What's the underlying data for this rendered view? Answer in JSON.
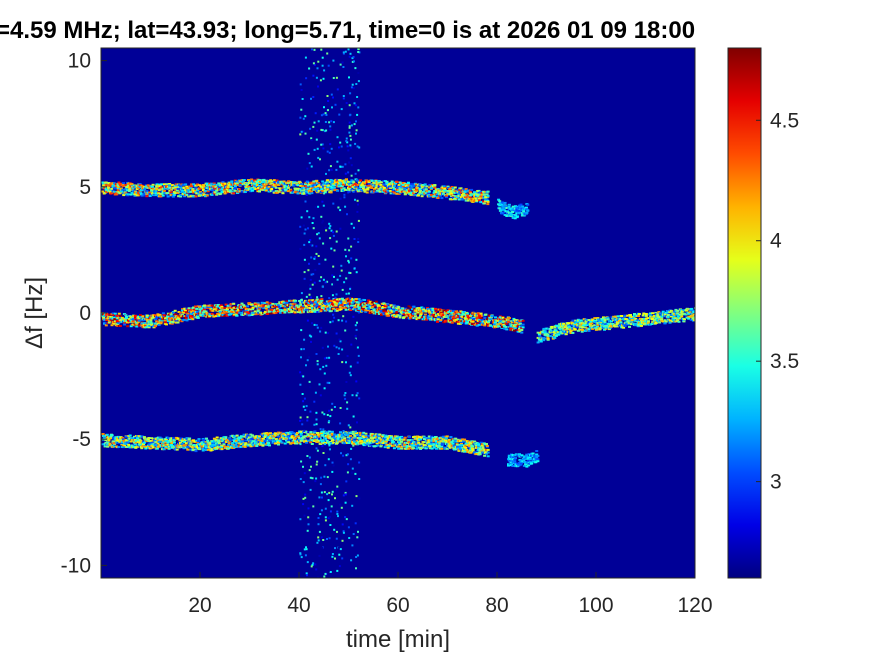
{
  "chart_data": {
    "type": "heatmap",
    "title": "=4.59 MHz;  lat=43.93; long=5.71, time=0 is at 2026 01 09 18:00",
    "xlabel": "time [min]",
    "ylabel": "Δf [Hz]",
    "xlim": [
      0,
      120
    ],
    "ylim": [
      -10.5,
      10.5
    ],
    "xticks": [
      20,
      40,
      60,
      80,
      100,
      120
    ],
    "yticks": [
      -10,
      -5,
      0,
      5,
      10
    ],
    "xtick_labels": [
      "20",
      "40",
      "60",
      "80",
      "100",
      "120"
    ],
    "ytick_labels": [
      "-10",
      "-5",
      "0",
      "5",
      "10"
    ],
    "colorbar": {
      "range": [
        2.6,
        4.8
      ],
      "ticks": [
        3,
        3.5,
        4,
        4.5
      ],
      "tick_labels": [
        "3",
        "3.5",
        "4",
        "4.5"
      ],
      "colormap": "jet"
    },
    "background_level": 2.65,
    "features": [
      {
        "name": "upper sideband trace",
        "x": [
          0,
          10,
          20,
          30,
          40,
          50,
          60,
          70,
          78
        ],
        "y": [
          5.0,
          4.9,
          4.9,
          5.1,
          5.0,
          5.1,
          5.0,
          4.8,
          4.6
        ],
        "peak": 4.5
      },
      {
        "name": "upper sideband tail",
        "x": [
          80,
          83,
          86
        ],
        "y": [
          4.3,
          4.0,
          4.2
        ],
        "peak": 3.6
      },
      {
        "name": "carrier trace",
        "x": [
          0,
          10,
          20,
          30,
          40,
          50,
          60,
          70,
          80,
          85
        ],
        "y": [
          -0.2,
          -0.3,
          0.1,
          0.2,
          0.3,
          0.4,
          0.1,
          -0.1,
          -0.3,
          -0.5
        ],
        "peak": 4.8
      },
      {
        "name": "carrier trace late",
        "x": [
          88,
          95,
          105,
          115,
          120
        ],
        "y": [
          -0.9,
          -0.5,
          -0.3,
          -0.1,
          0.0
        ],
        "peak": 4.2
      },
      {
        "name": "lower sideband trace",
        "x": [
          0,
          10,
          20,
          30,
          40,
          50,
          60,
          70,
          78
        ],
        "y": [
          -5.0,
          -5.1,
          -5.2,
          -5.0,
          -4.9,
          -4.9,
          -5.1,
          -5.1,
          -5.4
        ],
        "peak": 4.3
      },
      {
        "name": "lower sideband tail",
        "x": [
          82,
          86,
          88
        ],
        "y": [
          -5.8,
          -5.8,
          -5.6
        ],
        "peak": 3.5
      },
      {
        "name": "broadband noise band",
        "x_range": [
          40,
          52
        ],
        "level": 3.4
      }
    ]
  }
}
